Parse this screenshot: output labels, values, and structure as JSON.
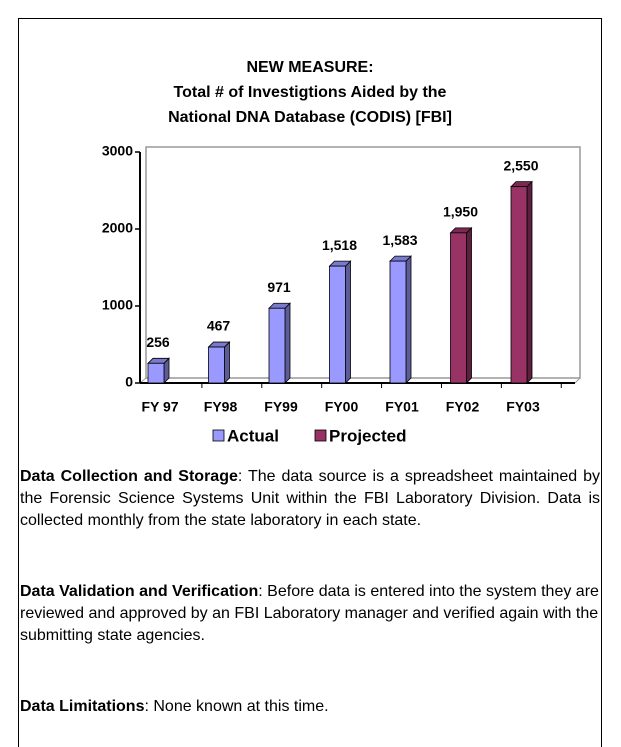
{
  "chart_data": {
    "type": "bar3d",
    "title": [
      "NEW MEASURE:",
      "Total # of Investigtions Aided by the",
      "National DNA Database (CODIS) [FBI]"
    ],
    "categories": [
      "FY 97",
      "FY98",
      "FY99",
      "FY00",
      "FY01",
      "FY02",
      "FY03"
    ],
    "series": [
      {
        "name": "Actual",
        "color": "#9999ff",
        "values": [
          256,
          467,
          971,
          1518,
          1583,
          null,
          null
        ],
        "value_labels": [
          "256",
          "467",
          "971",
          "1,518",
          "1,583",
          null,
          null
        ]
      },
      {
        "name": "Projected",
        "color": "#993366",
        "values": [
          null,
          null,
          null,
          null,
          null,
          1950,
          2550
        ],
        "value_labels": [
          null,
          null,
          null,
          null,
          null,
          "1,950",
          "2,550"
        ]
      }
    ],
    "ylim": [
      0,
      3000
    ],
    "yticks": [
      0,
      1000,
      2000,
      3000
    ],
    "legend": "bottom"
  },
  "sections": [
    {
      "heading": "Data Collection and Storage",
      "text": ":  The data source is a spreadsheet maintained by the Forensic Science Systems Unit within the FBI Laboratory Division. Data is collected monthly from the state laboratory in each state."
    },
    {
      "heading": "Data Validation and Verification",
      "text": ":  Before data is entered into the system they are reviewed and approved by an FBI Laboratory manager and verified again with the submitting state agencies."
    },
    {
      "heading": "Data Limitations",
      "text": ":  None known at this time."
    }
  ]
}
